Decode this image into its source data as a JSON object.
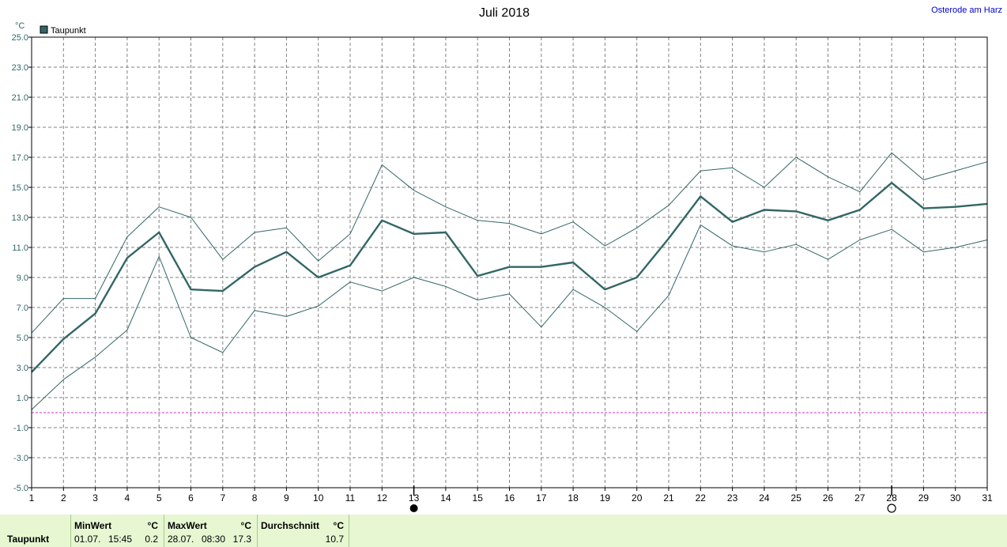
{
  "header": {
    "title": "Juli 2018",
    "location": "Osterode am Harz",
    "unit": "°C",
    "legend_label": "Taupunkt"
  },
  "colors": {
    "series": "#336666",
    "grid": "#808080",
    "axis_text": "#336666",
    "zero_line": "#cc33cc",
    "footer_bg": "#e6f7d2",
    "location_text": "#0000cc"
  },
  "chart_data": {
    "type": "line",
    "title": "Juli 2018",
    "xlabel": "",
    "ylabel": "°C",
    "x": [
      1,
      2,
      3,
      4,
      5,
      6,
      7,
      8,
      9,
      10,
      11,
      12,
      13,
      14,
      15,
      16,
      17,
      18,
      19,
      20,
      21,
      22,
      23,
      24,
      25,
      26,
      27,
      28,
      29,
      30,
      31
    ],
    "ylim": [
      -5,
      25
    ],
    "yticks": [
      25.0,
      23.0,
      21.0,
      19.0,
      17.0,
      15.0,
      13.0,
      11.0,
      9.0,
      7.0,
      5.0,
      3.0,
      1.0,
      -1.0,
      -3.0,
      -5.0
    ],
    "ytick_labels": [
      "25.0",
      "23.0",
      "21.0",
      "19.0",
      "17.0",
      "15.0",
      "13.0",
      "11.0",
      "9.0",
      "7.0",
      "5.0",
      "3.0",
      "1.0",
      "-1.0",
      "-3.0",
      "-5.0"
    ],
    "grid": true,
    "legend": "top-left",
    "reference_line": 0,
    "markers": [
      {
        "x": 13,
        "symbol": "full-moon"
      },
      {
        "x": 28,
        "symbol": "new-moon"
      }
    ],
    "series": [
      {
        "name": "Taupunkt",
        "role": "mean",
        "values": [
          2.7,
          4.9,
          6.6,
          10.3,
          12.0,
          8.2,
          8.1,
          9.7,
          10.7,
          9.0,
          9.8,
          12.8,
          11.9,
          12.0,
          9.1,
          9.7,
          9.7,
          10.0,
          8.2,
          9.0,
          11.6,
          14.4,
          12.7,
          13.5,
          13.4,
          12.8,
          13.5,
          15.3,
          13.6,
          13.7,
          13.9
        ]
      },
      {
        "role": "max",
        "values": [
          5.3,
          7.6,
          7.6,
          11.7,
          13.7,
          13.0,
          10.2,
          12.0,
          12.3,
          10.1,
          11.9,
          16.5,
          14.8,
          13.7,
          12.8,
          12.6,
          11.9,
          12.7,
          11.1,
          12.3,
          13.8,
          16.1,
          16.3,
          15.0,
          17.0,
          15.7,
          14.7,
          17.3,
          15.5,
          16.1,
          16.7
        ]
      },
      {
        "role": "min",
        "values": [
          0.2,
          2.2,
          3.7,
          5.5,
          10.4,
          5.0,
          4.0,
          6.8,
          6.4,
          7.1,
          8.7,
          8.1,
          9.0,
          8.4,
          7.5,
          7.9,
          5.7,
          8.2,
          7.0,
          5.4,
          7.8,
          12.5,
          11.1,
          10.7,
          11.2,
          10.2,
          11.5,
          12.2,
          10.7,
          11.0,
          11.5
        ]
      }
    ]
  },
  "footer": {
    "row_label": "Taupunkt",
    "min": {
      "title": "MinWert",
      "unit": "°C",
      "date": "01.07.",
      "time": "15:45",
      "value": "0.2"
    },
    "max": {
      "title": "MaxWert",
      "unit": "°C",
      "date": "28.07.",
      "time": "08:30",
      "value": "17.3"
    },
    "avg": {
      "title": "Durchschnitt",
      "unit": "°C",
      "value": "10.7"
    }
  }
}
